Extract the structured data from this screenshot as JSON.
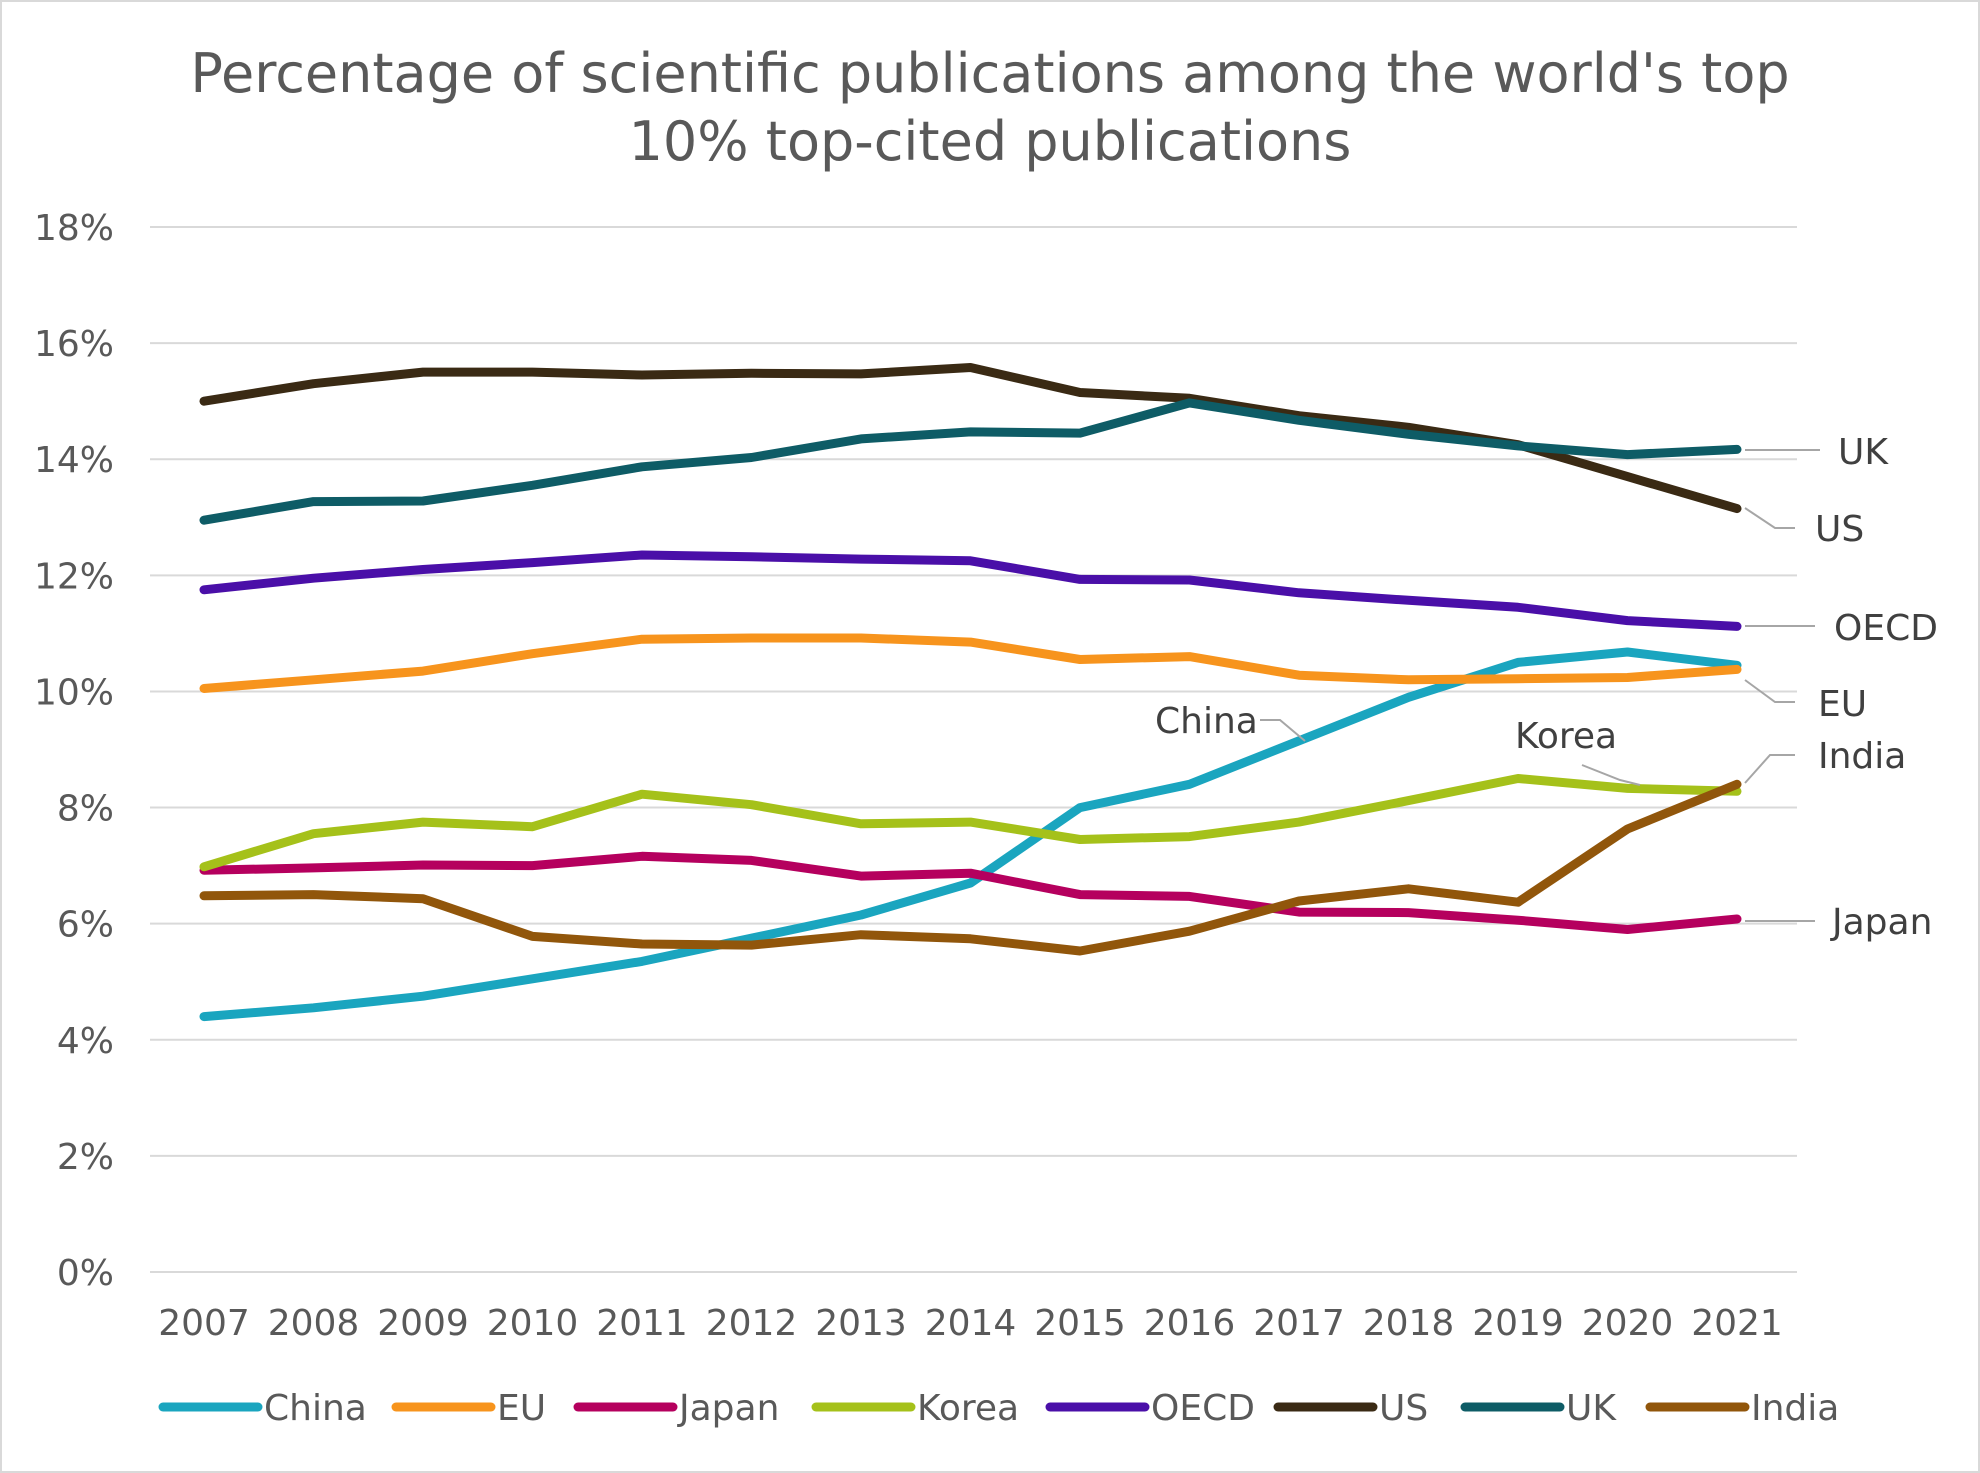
{
  "chart_data": {
    "type": "line",
    "title_lines": [
      "Percentage of scientific publications among the world's top",
      "10% top-cited publications"
    ],
    "xlabel": "",
    "ylabel": "",
    "x": [
      "2007",
      "2008",
      "2009",
      "2010",
      "2011",
      "2012",
      "2013",
      "2014",
      "2015",
      "2016",
      "2017",
      "2018",
      "2019",
      "2020",
      "2021"
    ],
    "ylim": [
      0,
      18
    ],
    "ytick_labels": [
      "0%",
      "2%",
      "4%",
      "6%",
      "8%",
      "10%",
      "12%",
      "14%",
      "16%",
      "18%"
    ],
    "grid": true,
    "legend_position": "bottom",
    "series": [
      {
        "name": "China",
        "color": "#1aa5bf",
        "values": [
          4.4,
          4.55,
          4.75,
          5.05,
          5.35,
          5.75,
          6.15,
          6.7,
          8.0,
          8.4,
          9.15,
          9.9,
          10.5,
          10.68,
          10.45
        ]
      },
      {
        "name": "EU",
        "color": "#f7941d",
        "values": [
          10.05,
          10.2,
          10.35,
          10.65,
          10.9,
          10.92,
          10.92,
          10.85,
          10.55,
          10.6,
          10.28,
          10.2,
          10.22,
          10.24,
          10.38
        ]
      },
      {
        "name": "Japan",
        "color": "#b5005e",
        "values": [
          6.92,
          6.96,
          7.01,
          7.0,
          7.16,
          7.09,
          6.82,
          6.87,
          6.5,
          6.47,
          6.2,
          6.19,
          6.06,
          5.9,
          6.08
        ]
      },
      {
        "name": "Korea",
        "color": "#a5c11a",
        "values": [
          6.98,
          7.55,
          7.75,
          7.67,
          8.23,
          8.05,
          7.72,
          7.75,
          7.45,
          7.5,
          7.75,
          8.12,
          8.5,
          8.33,
          8.28
        ]
      },
      {
        "name": "OECD",
        "color": "#4a0fa8",
        "values": [
          11.75,
          11.95,
          12.1,
          12.22,
          12.35,
          12.32,
          12.28,
          12.25,
          11.93,
          11.92,
          11.7,
          11.57,
          11.45,
          11.22,
          11.12
        ]
      },
      {
        "name": "US",
        "color": "#3a2a14",
        "values": [
          15.0,
          15.3,
          15.5,
          15.5,
          15.45,
          15.48,
          15.47,
          15.58,
          15.15,
          15.05,
          14.75,
          14.55,
          14.25,
          13.7,
          13.15
        ]
      },
      {
        "name": "UK",
        "color": "#0e5c66",
        "values": [
          12.95,
          13.27,
          13.28,
          13.55,
          13.87,
          14.03,
          14.35,
          14.47,
          14.45,
          14.97,
          14.67,
          14.43,
          14.23,
          14.08,
          14.17
        ]
      },
      {
        "name": "India",
        "color": "#91560b",
        "values": [
          6.48,
          6.5,
          6.43,
          5.78,
          5.65,
          5.63,
          5.81,
          5.74,
          5.53,
          5.87,
          6.39,
          6.6,
          6.37,
          7.63,
          8.4
        ]
      }
    ],
    "annotations": [
      "UK",
      "US",
      "OECD",
      "EU",
      "India",
      "Japan",
      "China",
      "Korea"
    ]
  }
}
